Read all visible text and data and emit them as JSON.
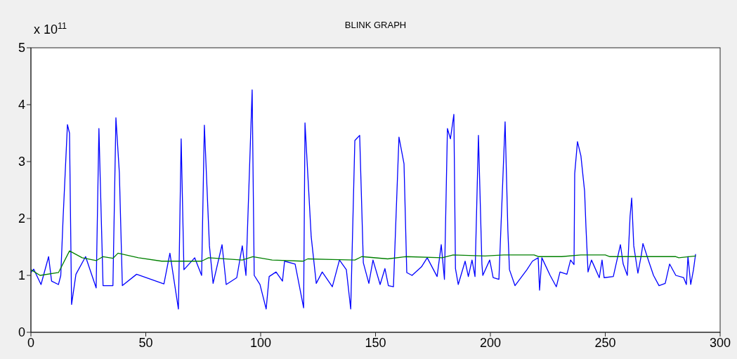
{
  "chart_data": {
    "type": "line",
    "title": "BLINK GRAPH",
    "annotations": [
      "x 10$^{11}$"
    ],
    "xlim": [
      0,
      300
    ],
    "xticks": [
      0,
      50,
      100,
      150,
      200,
      250,
      300
    ],
    "ylim": [
      0,
      5
    ],
    "yticks": [
      0,
      1,
      2,
      3,
      4,
      5
    ],
    "grid": false,
    "legend": false,
    "marker": "none",
    "line_style": "solid",
    "series": [
      {
        "color": "#0000ff",
        "x": [
          0,
          1.2,
          4.4,
          7.7,
          9,
          12,
          13,
          14,
          15.9,
          16.8,
          17.7,
          19.6,
          23.8,
          28.4,
          29.6,
          31.4,
          35.7,
          37,
          38.5,
          39.8,
          46,
          57.9,
          60.5,
          64.2,
          65.4,
          66.6,
          71.3,
          74.3,
          75.5,
          77.7,
          79.3,
          83.2,
          85,
          89.6,
          92,
          93.6,
          96.3,
          97.2,
          99.7,
          102.4,
          103.7,
          106.7,
          109.5,
          110.4,
          115,
          118.7,
          119.3,
          122,
          124.2,
          126.8,
          131.2,
          134.3,
          137.3,
          139.2,
          141,
          143.1,
          144.7,
          147.1,
          148.9,
          152,
          154.1,
          155.6,
          157.8,
          160.2,
          162.4,
          163.6,
          165.9,
          170,
          172.5,
          176.8,
          178.6,
          180,
          181.3,
          182.6,
          184.1,
          184.8,
          186,
          189,
          190.4,
          192,
          193.3,
          194.8,
          196.3,
          196.7,
          199.7,
          201.2,
          203.7,
          206.4,
          207.6,
          208.3,
          210.7,
          215.9,
          218.3,
          220.8,
          221.4,
          222.4,
          226,
          228.7,
          230.3,
          233.3,
          234.9,
          236.4,
          236.7,
          237.9,
          239.4,
          241,
          241.6,
          242.5,
          244,
          247.4,
          248.6,
          249.5,
          253.5,
          255.6,
          256.6,
          257.8,
          259.6,
          260.8,
          261.5,
          262.4,
          264.2,
          265.7,
          266.4,
          268.9,
          271,
          273.4,
          276.1,
          278,
          280.7,
          284.1,
          285.3,
          286,
          287.2,
          288.4,
          289.3
        ],
        "values": [
          1.05,
          1.11,
          0.84,
          1.33,
          0.9,
          0.84,
          1.0,
          2.0,
          3.65,
          3.5,
          0.49,
          1.02,
          1.33,
          0.78,
          3.58,
          0.82,
          0.82,
          3.77,
          2.8,
          0.82,
          1.02,
          0.85,
          1.39,
          0.41,
          3.4,
          1.1,
          1.31,
          1.0,
          3.64,
          1.52,
          0.86,
          1.54,
          0.84,
          0.96,
          1.52,
          1.0,
          4.26,
          1.0,
          0.84,
          0.41,
          0.98,
          1.06,
          0.9,
          1.25,
          1.2,
          0.43,
          3.68,
          1.68,
          0.86,
          1.06,
          0.8,
          1.27,
          1.1,
          0.41,
          3.37,
          3.46,
          1.22,
          0.86,
          1.27,
          0.84,
          1.12,
          0.82,
          0.8,
          3.43,
          2.96,
          1.05,
          1.0,
          1.15,
          1.31,
          0.98,
          1.54,
          0.93,
          3.58,
          3.4,
          3.83,
          1.12,
          0.84,
          1.25,
          0.98,
          1.27,
          0.98,
          3.46,
          1.2,
          1.0,
          1.27,
          0.96,
          0.93,
          3.7,
          1.8,
          1.1,
          0.82,
          1.1,
          1.25,
          1.31,
          0.74,
          1.31,
          1.0,
          0.8,
          1.06,
          1.02,
          1.27,
          1.19,
          2.79,
          3.35,
          3.1,
          2.48,
          1.85,
          1.06,
          1.27,
          0.96,
          1.27,
          0.96,
          0.98,
          1.36,
          1.54,
          1.2,
          1.0,
          2.04,
          2.36,
          1.52,
          1.04,
          1.36,
          1.56,
          1.25,
          1.0,
          0.82,
          0.86,
          1.2,
          1.0,
          0.96,
          0.84,
          1.33,
          0.84,
          1.1,
          1.37
        ]
      },
      {
        "color": "#008000",
        "x": [
          0,
          4,
          12,
          16.8,
          22.3,
          28.4,
          31.4,
          35.7,
          37.9,
          46.8,
          56.9,
          74.3,
          77.3,
          92,
          96.6,
          105,
          118.4,
          120.5,
          131,
          141,
          144,
          155.3,
          163,
          179,
          183.8,
          197.6,
          205.8,
          219,
          221,
          231,
          239.4,
          250,
          252,
          280.7,
          282,
          289.3
        ],
        "values": [
          1.1,
          1.0,
          1.05,
          1.43,
          1.31,
          1.26,
          1.33,
          1.3,
          1.39,
          1.31,
          1.25,
          1.25,
          1.31,
          1.27,
          1.33,
          1.27,
          1.25,
          1.29,
          1.28,
          1.27,
          1.33,
          1.29,
          1.33,
          1.31,
          1.36,
          1.34,
          1.36,
          1.36,
          1.33,
          1.33,
          1.36,
          1.36,
          1.33,
          1.33,
          1.31,
          1.34
        ]
      }
    ]
  }
}
